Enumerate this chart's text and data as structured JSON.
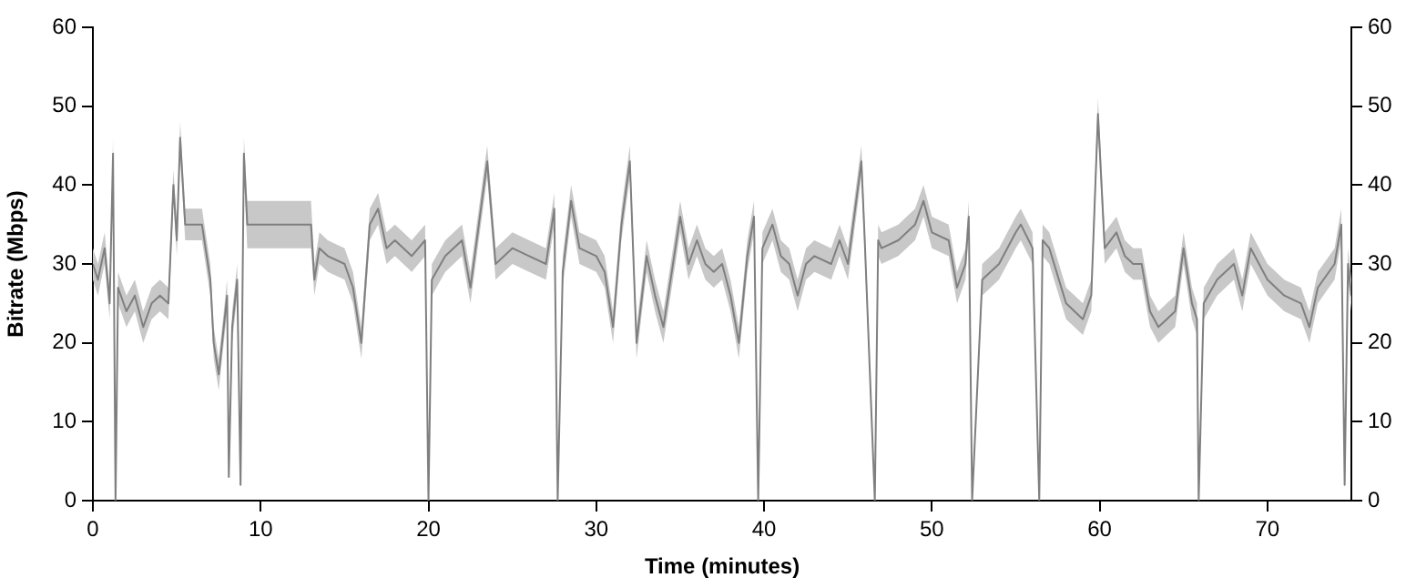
{
  "chart_data": {
    "type": "line",
    "xlabel": "Time (minutes)",
    "ylabel": "Bitrate (Mbps)",
    "xlim": [
      0,
      75
    ],
    "xticks": [
      0,
      10,
      20,
      30,
      40,
      50,
      60,
      70
    ],
    "ylim": [
      0,
      60
    ],
    "yticks": [
      0,
      10,
      20,
      30,
      40,
      50,
      60
    ],
    "y2lim": [
      0,
      60
    ],
    "y2ticks": [
      0,
      10,
      20,
      30,
      40,
      50,
      60
    ],
    "grid": false,
    "legend": false,
    "marker": "none",
    "line_style": "solid",
    "series": [
      {
        "color": "#7f7f7f",
        "x": [
          0,
          0.3,
          0.7,
          1.0,
          1.2,
          1.35,
          1.5,
          2,
          2.5,
          3,
          3.5,
          4,
          4.5,
          4.8,
          5,
          5.2,
          5.5,
          6,
          6.5,
          7,
          7.2,
          7.5,
          7.8,
          8,
          8.1,
          8.3,
          8.6,
          8.8,
          9.0,
          9.2,
          10,
          11,
          12,
          13,
          13.2,
          13.5,
          14,
          15,
          15.5,
          16,
          16.5,
          17,
          17.5,
          18,
          19,
          19.8,
          20.0,
          20.2,
          21,
          22,
          22.5,
          23,
          23.5,
          24,
          25,
          26,
          27,
          27.5,
          27.7,
          28,
          28.5,
          29,
          30,
          30.5,
          31,
          31.5,
          32,
          32.4,
          33,
          33.5,
          34,
          35,
          35.5,
          36,
          36.5,
          37,
          37.5,
          38,
          38.5,
          39,
          39.4,
          39.65,
          39.9,
          40.5,
          41,
          41.5,
          42,
          42.5,
          43,
          44,
          44.5,
          45,
          45.8,
          46,
          46.6,
          46.8,
          47,
          48,
          49,
          49.5,
          50,
          51,
          51.5,
          52,
          52.2,
          52.4,
          53,
          54,
          55,
          55.3,
          56,
          56.4,
          56.6,
          57,
          58,
          59,
          59.5,
          59.9,
          60.3,
          61,
          61.5,
          62,
          62.5,
          63,
          63.5,
          64,
          64.5,
          65,
          65.5,
          65.8,
          65.9,
          66.2,
          67,
          68,
          68.5,
          69,
          70,
          71,
          72,
          72.5,
          73,
          74,
          74.4,
          74.6,
          74.8,
          75
        ],
        "values": [
          30,
          28,
          32,
          25,
          44,
          0,
          27,
          24,
          26,
          22,
          25,
          26,
          25,
          40,
          33,
          46,
          35,
          35,
          35,
          28,
          20,
          16,
          22,
          26,
          3,
          22,
          28,
          2,
          44,
          35,
          35,
          35,
          35,
          35,
          28,
          32,
          31,
          30,
          27,
          20,
          35,
          37,
          32,
          33,
          31,
          33,
          0,
          28,
          31,
          33,
          27,
          35,
          43,
          30,
          32,
          31,
          30,
          37,
          0,
          29,
          38,
          32,
          31,
          29,
          22,
          35,
          43,
          20,
          31,
          26,
          22,
          36,
          30,
          33,
          30,
          29,
          30,
          26,
          20,
          31,
          36,
          0,
          32,
          35,
          31,
          30,
          26,
          30,
          31,
          30,
          33,
          30,
          43,
          33,
          0,
          33,
          32,
          33,
          35,
          38,
          34,
          33,
          27,
          30,
          36,
          0,
          28,
          30,
          34,
          35,
          32,
          0,
          33,
          32,
          25,
          23,
          26,
          49,
          32,
          34,
          31,
          30,
          30,
          24,
          22,
          23,
          24,
          32,
          25,
          23,
          0,
          25,
          28,
          30,
          26,
          32,
          28,
          26,
          25,
          22,
          27,
          30,
          35,
          2,
          30,
          26
        ],
        "lower": [
          28,
          26,
          30,
          23,
          42,
          0,
          25,
          22,
          24,
          20,
          23,
          24,
          23,
          38,
          31,
          44,
          33,
          33,
          33,
          26,
          18,
          14,
          20,
          24,
          3,
          20,
          26,
          2,
          42,
          32,
          32,
          32,
          32,
          32,
          26,
          30,
          29,
          28,
          25,
          18,
          33,
          35,
          30,
          31,
          29,
          31,
          0,
          26,
          29,
          31,
          25,
          33,
          41,
          28,
          30,
          29,
          28,
          35,
          0,
          27,
          36,
          30,
          29,
          27,
          20,
          33,
          41,
          18,
          29,
          24,
          20,
          34,
          28,
          31,
          28,
          27,
          28,
          24,
          18,
          29,
          34,
          0,
          30,
          33,
          29,
          28,
          24,
          28,
          29,
          28,
          31,
          28,
          41,
          31,
          0,
          31,
          30,
          31,
          33,
          36,
          32,
          31,
          25,
          28,
          34,
          0,
          26,
          28,
          32,
          33,
          30,
          0,
          31,
          30,
          23,
          21,
          24,
          47,
          30,
          32,
          29,
          28,
          28,
          22,
          20,
          21,
          22,
          30,
          23,
          21,
          0,
          23,
          26,
          28,
          24,
          30,
          26,
          24,
          23,
          20,
          25,
          28,
          33,
          2,
          28,
          24
        ],
        "upper": [
          32,
          30,
          34,
          27,
          46,
          0,
          29,
          26,
          28,
          24,
          27,
          28,
          27,
          42,
          35,
          48,
          37,
          37,
          37,
          30,
          22,
          18,
          24,
          28,
          3,
          24,
          30,
          2,
          46,
          38,
          38,
          38,
          38,
          38,
          30,
          34,
          33,
          32,
          29,
          22,
          37,
          39,
          34,
          35,
          33,
          35,
          0,
          30,
          33,
          35,
          29,
          37,
          45,
          32,
          34,
          33,
          32,
          39,
          0,
          31,
          40,
          34,
          33,
          31,
          24,
          37,
          45,
          22,
          33,
          28,
          24,
          38,
          32,
          35,
          32,
          31,
          32,
          28,
          22,
          33,
          38,
          0,
          34,
          37,
          33,
          32,
          28,
          32,
          33,
          32,
          35,
          32,
          45,
          35,
          0,
          35,
          34,
          35,
          37,
          40,
          36,
          35,
          29,
          32,
          38,
          0,
          30,
          32,
          36,
          37,
          34,
          0,
          35,
          34,
          27,
          25,
          28,
          51,
          34,
          36,
          33,
          32,
          32,
          26,
          24,
          25,
          26,
          34,
          27,
          25,
          0,
          27,
          30,
          32,
          28,
          34,
          30,
          28,
          27,
          24,
          29,
          32,
          37,
          2,
          32,
          28
        ]
      }
    ]
  }
}
